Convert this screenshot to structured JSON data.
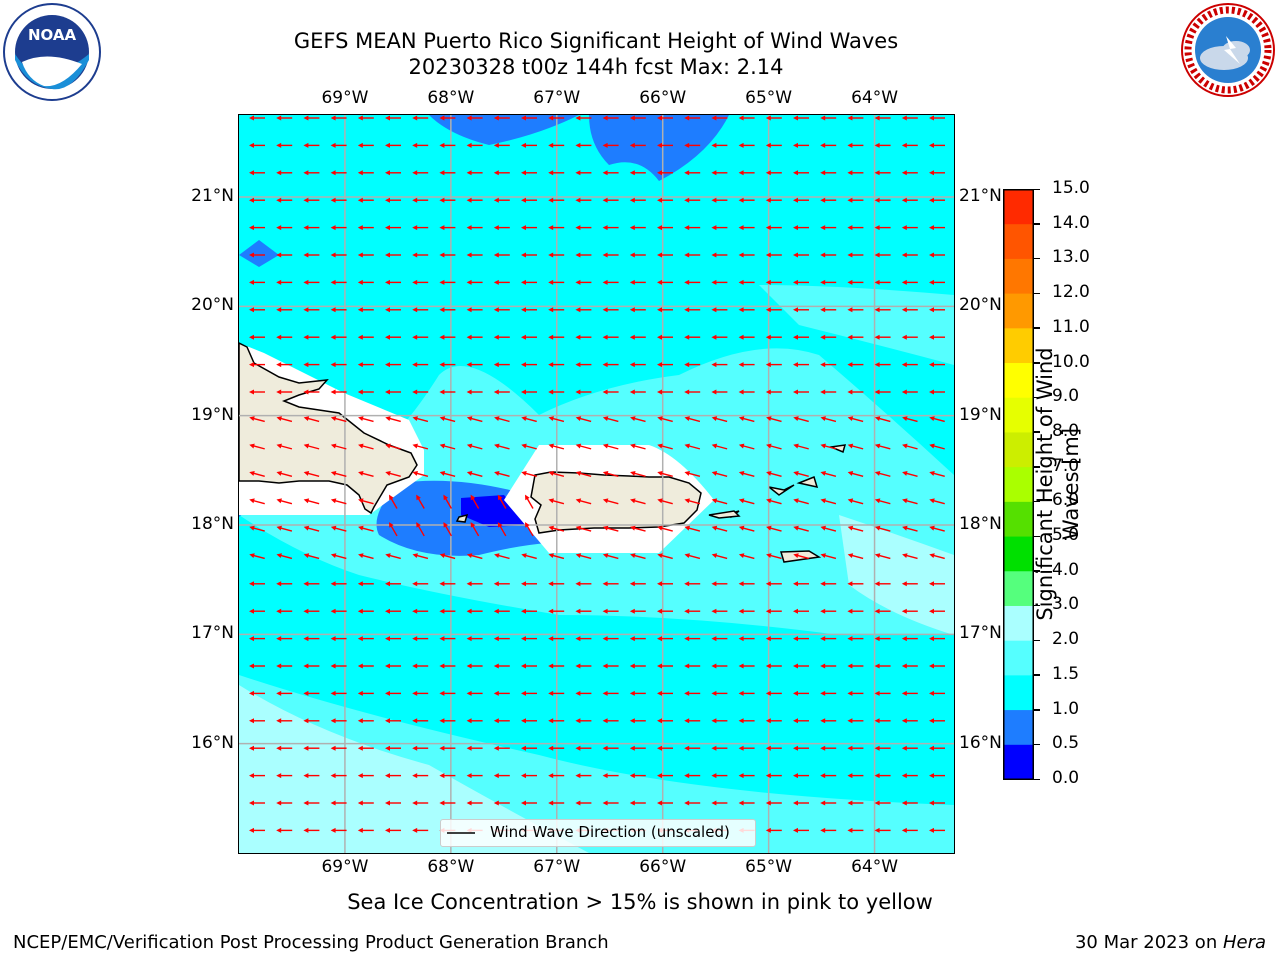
{
  "header": {
    "title_line1": "GEFS MEAN Puerto Rico Significant Height of Wind Waves",
    "title_line2": "20230328 t00z 144h fcst   Max: 2.14"
  },
  "logos": {
    "left": {
      "name": "NOAA",
      "ring_text": "NATIONAL OCEANIC AND ATMOSPHERIC ADMINISTRATION • U.S. DEPARTMENT OF COMMERCE"
    },
    "right": {
      "name": "NATIONAL WEATHER SERVICE"
    }
  },
  "map": {
    "lon_labels": [
      "69°W",
      "68°W",
      "67°W",
      "66°W",
      "65°W",
      "64°W"
    ],
    "lat_labels": [
      "21°N",
      "20°N",
      "19°N",
      "18°N",
      "17°N",
      "16°N"
    ],
    "lon_values": [
      -69,
      -68,
      -67,
      -66,
      -65,
      -64
    ],
    "lat_values": [
      21,
      20,
      19,
      18,
      17,
      16
    ],
    "extent": {
      "lon_min": -70.0,
      "lon_max": -63.25,
      "lat_min": 15.0,
      "lat_max": 21.75
    },
    "arrow_color": "#ff0000",
    "land_color": "#efecdc",
    "legend_label": "Wind Wave Direction (unscaled)"
  },
  "colorbar": {
    "label": "Significant Height of Wind Waves [m]",
    "ticks": [
      "0.0",
      "0.5",
      "1.0",
      "1.5",
      "2.0",
      "3.0",
      "4.0",
      "5.0",
      "6.0",
      "7.0",
      "8.0",
      "9.0",
      "10.0",
      "11.0",
      "12.0",
      "13.0",
      "14.0",
      "15.0"
    ],
    "colors": [
      "#0000ff",
      "#1e7dff",
      "#00ffff",
      "#55ffff",
      "#aaffff",
      "#55ff7d",
      "#00e000",
      "#55e000",
      "#aaff00",
      "#ccee00",
      "#e6ff00",
      "#ffff00",
      "#ffcc00",
      "#ff9900",
      "#ff7700",
      "#ff5500",
      "#ff2a00",
      "#ff0000"
    ]
  },
  "footer": {
    "note": "Sea Ice Concentration > 15% is shown in pink to yellow",
    "org": "NCEP/EMC/Verification Post Processing Product Generation Branch",
    "date": "30 Mar 2023 on ",
    "host": "Hera"
  }
}
